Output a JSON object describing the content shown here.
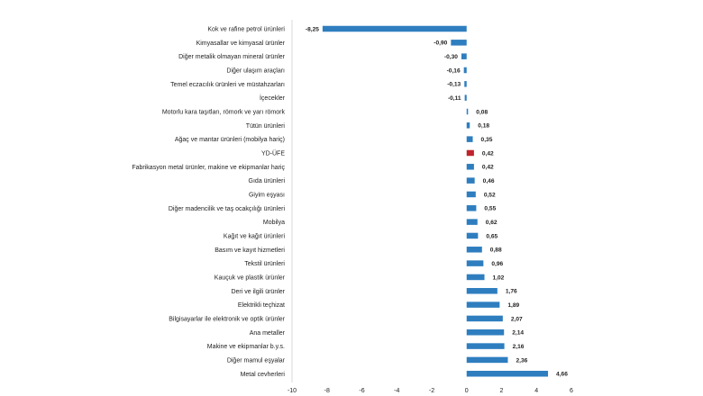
{
  "chart_data": {
    "type": "bar",
    "orientation": "horizontal",
    "title": "",
    "xlabel": "",
    "ylabel": "",
    "xlim": [
      -10,
      6
    ],
    "xticks": [
      -10,
      -8,
      -6,
      -4,
      -2,
      0,
      2,
      4,
      6
    ],
    "grid": false,
    "legend": "none",
    "colors": {
      "default": "#2E7EBF",
      "highlight": "#C0232C"
    },
    "highlight_category": "YD-ÜFE",
    "categories": [
      "Kok ve rafine petrol ürünleri",
      "Kimyasallar ve kimyasal ürünler",
      "Diğer metalik olmayan mineral ürünler",
      "Diğer ulaşım araçları",
      "Temel eczacılık ürünleri ve müstahzarları",
      "İçecekler",
      "Motorlu kara taşıtları, römork ve yarı römork",
      "Tütün ürünleri",
      "Ağaç ve mantar ürünleri (mobilya hariç)",
      "YD-ÜFE",
      "Fabrikasyon metal ürünler, makine ve ekipmanlar hariç",
      "Gıda ürünleri",
      "Giyim eşyası",
      "Diğer madencilik ve taş ocakçılığı ürünleri",
      "Mobilya",
      "Kağıt ve kağıt ürünleri",
      "Basım ve kayıt hizmetleri",
      "Tekstil ürünleri",
      "Kauçuk ve plastik ürünler",
      "Deri ve ilgili ürünler",
      "Elektrikli teçhizat",
      "Bilgisayarlar ile elektronik ve optik ürünler",
      "Ana metaller",
      "Makine ve ekipmanlar b.y.s.",
      "Diğer mamul eşyalar",
      "Metal cevherleri"
    ],
    "values": [
      -8.25,
      -0.9,
      -0.3,
      -0.16,
      -0.13,
      -0.11,
      0.08,
      0.18,
      0.35,
      0.42,
      0.42,
      0.46,
      0.52,
      0.55,
      0.62,
      0.65,
      0.88,
      0.96,
      1.02,
      1.76,
      1.89,
      2.07,
      2.14,
      2.16,
      2.36,
      4.66
    ],
    "value_labels": [
      "-8,25",
      "-0,90",
      "-0,30",
      "-0,16",
      "-0,13",
      "-0,11",
      "0,08",
      "0,18",
      "0,35",
      "0,42",
      "0,42",
      "0,46",
      "0,52",
      "0,55",
      "0,62",
      "0,65",
      "0,88",
      "0,96",
      "1,02",
      "1,76",
      "1,89",
      "2,07",
      "2,14",
      "2,16",
      "2,36",
      "4,66"
    ]
  }
}
